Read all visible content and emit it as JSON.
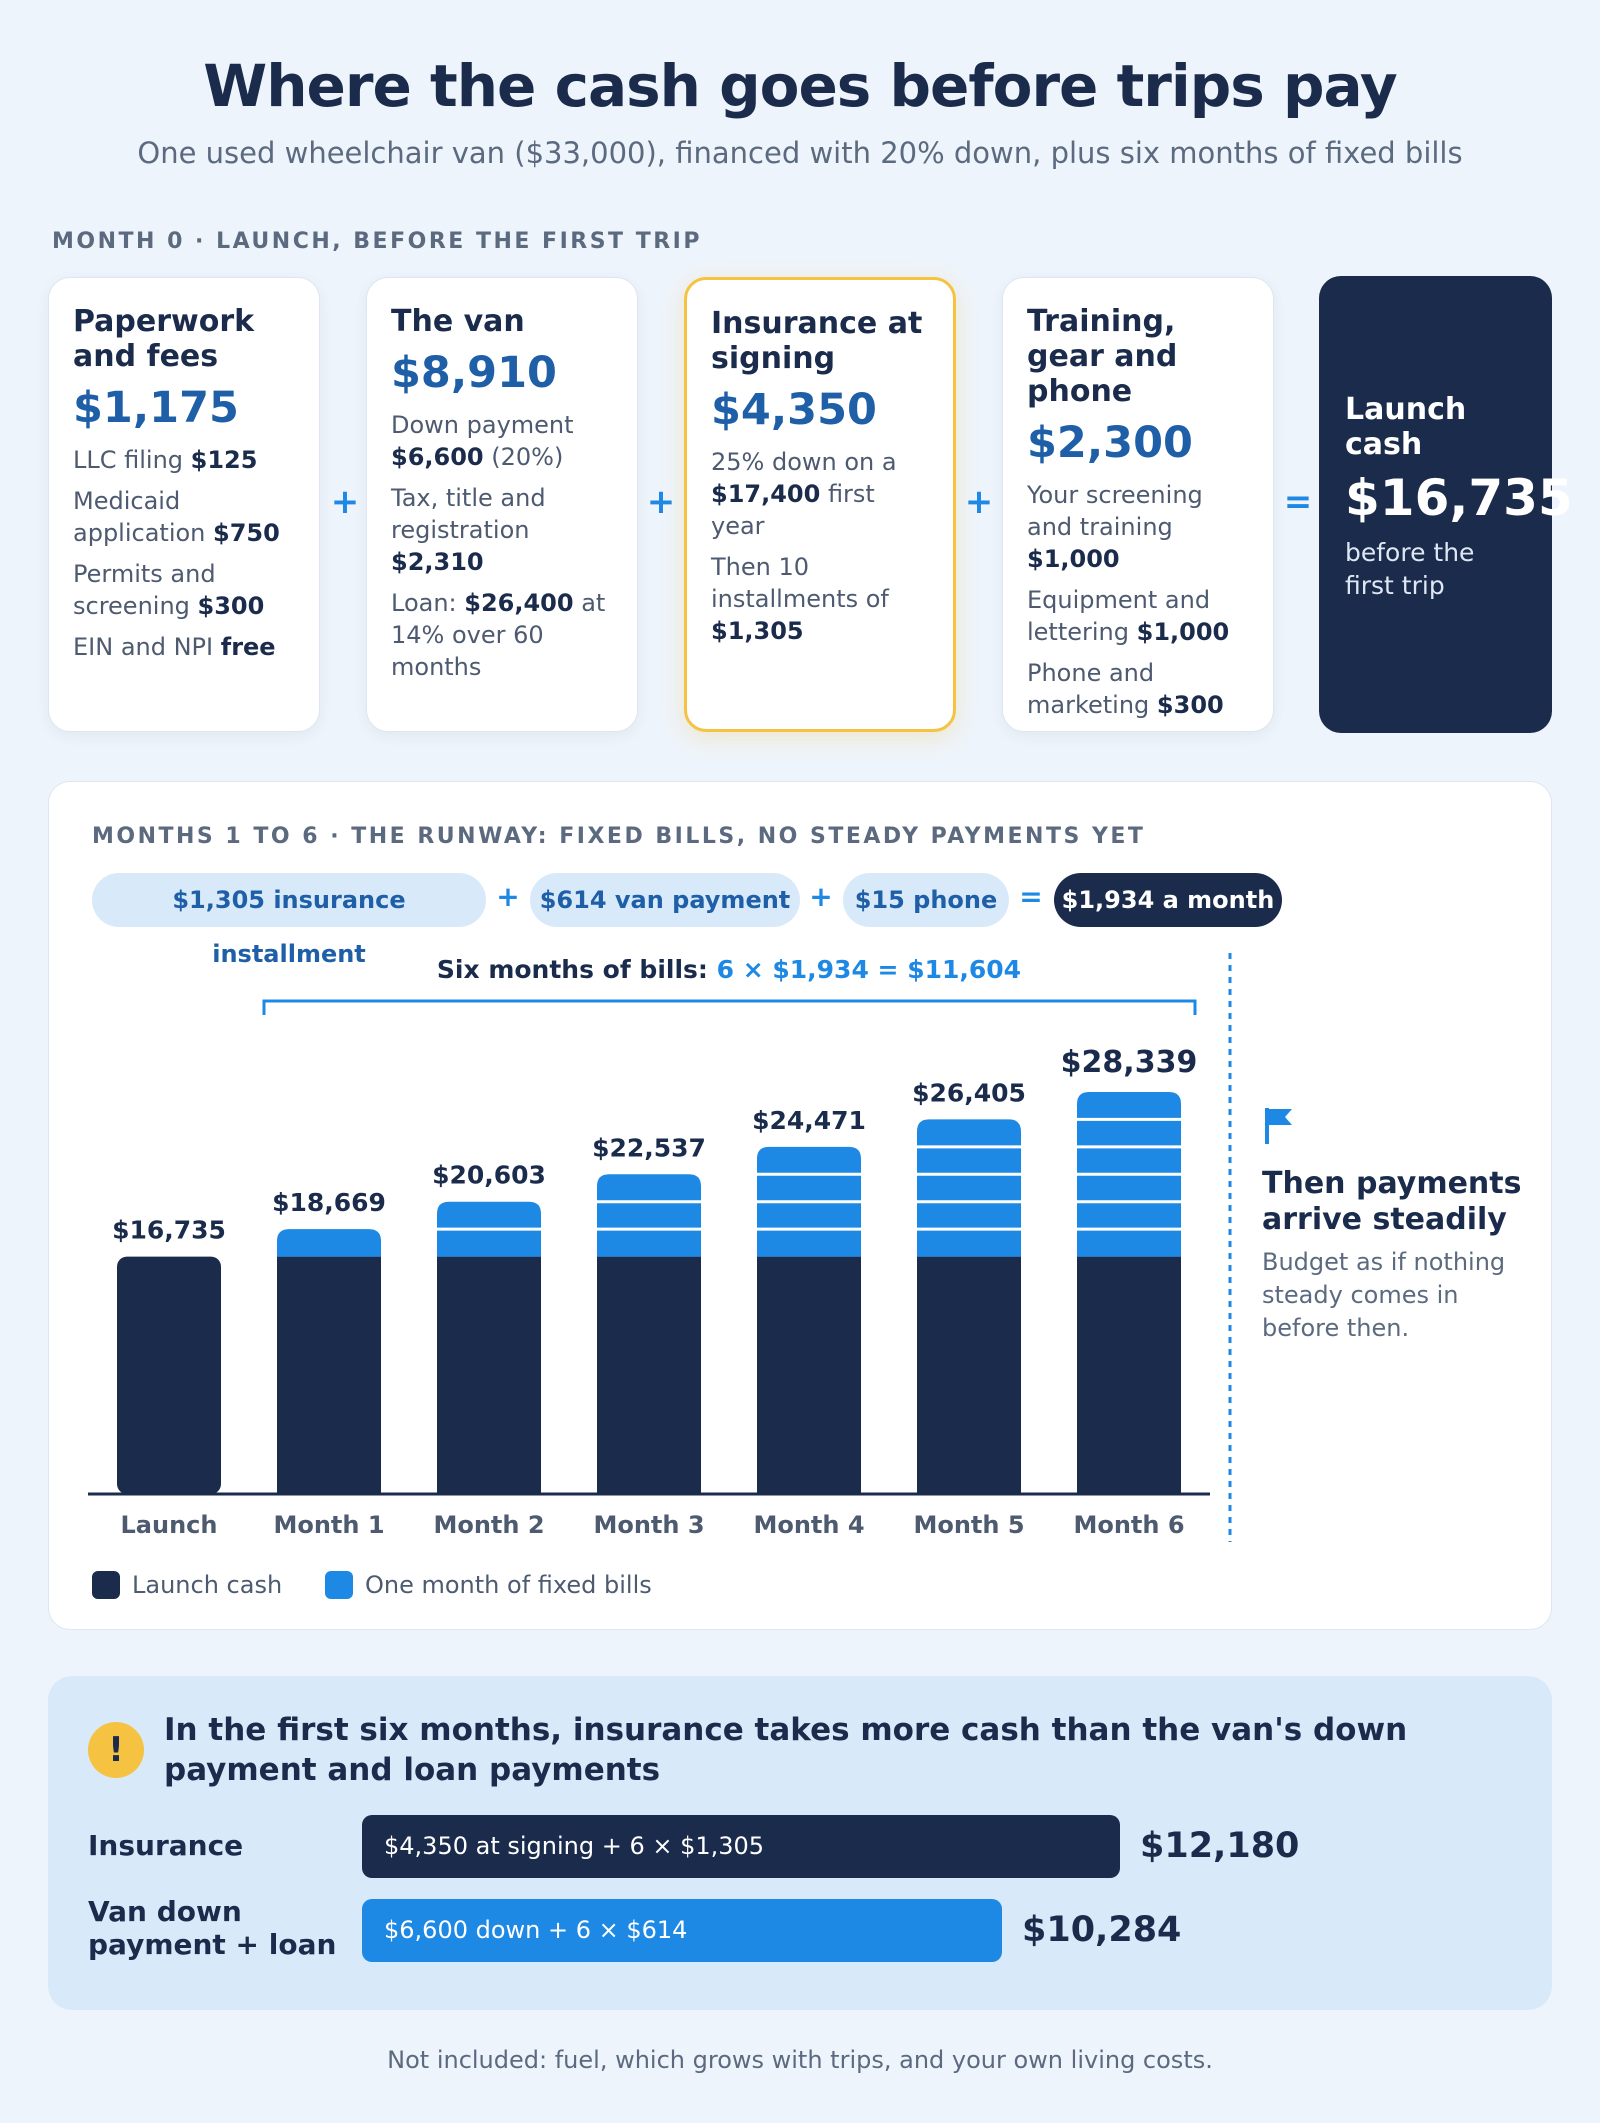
{
  "title": "Where the cash goes before trips pay",
  "subtitle": "One used wheelchair van ($33,000), financed with 20% down, plus six months of fixed bills",
  "month0": {
    "label": "MONTH 0 · LAUNCH, BEFORE THE FIRST TRIP",
    "cards": [
      {
        "title": "Paperwork and fees",
        "amount": "$1,175",
        "lines": [
          [
            "LLC filing ",
            "$125",
            ""
          ],
          [
            "Medicaid application ",
            "$750",
            ""
          ],
          [
            "Permits and screening ",
            "$300",
            ""
          ],
          [
            "EIN and NPI ",
            "free",
            ""
          ]
        ]
      },
      {
        "title": "The van",
        "amount": "$8,910",
        "lines": [
          [
            "Down payment ",
            "$6,600",
            " (20%)"
          ],
          [
            "Tax, title and registration ",
            "$2,310",
            ""
          ],
          [
            "Loan: ",
            "$26,400",
            " at 14% over 60 months"
          ]
        ]
      },
      {
        "title": "Insurance at signing",
        "amount": "$4,350",
        "lines": [
          [
            "25% down on a ",
            "$17,400",
            " first year"
          ],
          [
            "Then 10 installments of ",
            "$1,305",
            ""
          ]
        ]
      },
      {
        "title": "Training, gear and phone",
        "amount": "$2,300",
        "lines": [
          [
            "Your screening and training ",
            "$1,000",
            ""
          ],
          [
            "Equipment and lettering ",
            "$1,000",
            ""
          ],
          [
            "Phone and marketing ",
            "$300",
            ""
          ]
        ]
      }
    ],
    "operators": [
      "+",
      "+",
      "+",
      "="
    ],
    "launch": {
      "title": "Launch cash",
      "amount": "$16,735",
      "note": "before the first trip"
    }
  },
  "runway": {
    "label": "MONTHS 1 TO 6 · THE RUNWAY: FIXED BILLS, NO STEADY PAYMENTS YET",
    "pills": [
      "$1,305 insurance installment",
      "$614 van payment",
      "$15 phone",
      "$1,934 a month"
    ],
    "pill_ops": [
      "+",
      "+",
      "="
    ],
    "bracket": {
      "lead": "Six months of bills: ",
      "formula": "6 × $1,934 = $11,604"
    },
    "flag": {
      "title": "Then payments arrive steadily",
      "text": "Budget as if nothing steady comes in before then."
    }
  },
  "chart_data": {
    "type": "bar",
    "stacked": true,
    "categories": [
      "Launch",
      "Month 1",
      "Month 2",
      "Month 3",
      "Month 4",
      "Month 5",
      "Month 6"
    ],
    "series": [
      {
        "name": "Launch cash",
        "values": [
          16735,
          16735,
          16735,
          16735,
          16735,
          16735,
          16735
        ],
        "color": "#1a2b4c"
      },
      {
        "name": "One month of fixed bills",
        "values": [
          0,
          1934,
          3868,
          5802,
          7736,
          9670,
          11604
        ],
        "color": "#1e88e5"
      }
    ],
    "month_counts": [
      0,
      1,
      2,
      3,
      4,
      5,
      6
    ],
    "totals": [
      "$16,735",
      "$18,669",
      "$20,603",
      "$22,537",
      "$24,471",
      "$26,405",
      "$28,339"
    ],
    "ylim": [
      0,
      28339
    ],
    "grid": false,
    "legend": "bottom-left"
  },
  "insight": {
    "icon": "!",
    "heading": "In the first six months, insurance takes more cash than the van's down payment and loan payments",
    "rows": [
      {
        "label": "Insurance",
        "formula": "$4,350 at signing + 6 × $1,305",
        "total": "$12,180",
        "value": 12180,
        "color": "#1a2b4c"
      },
      {
        "label": "Van down payment + loan",
        "formula": "$6,600 down + 6 × $614",
        "total": "$10,284",
        "value": 10284,
        "color": "#1e88e5"
      }
    ]
  },
  "footnote": "Not included: fuel, which grows with trips, and your own living costs."
}
